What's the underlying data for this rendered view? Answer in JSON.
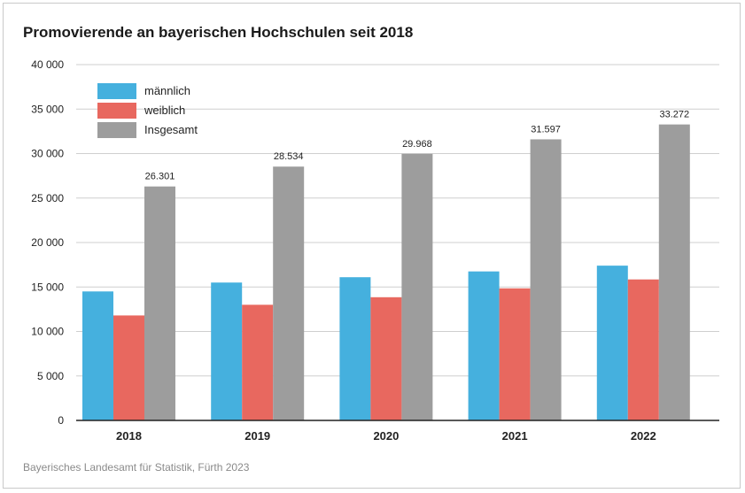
{
  "chart_data": {
    "type": "bar",
    "title": "Promovierende an bayerischen Hochschulen seit 2018",
    "source": "Bayerisches Landesamt für Statistik, Fürth 2023",
    "categories": [
      "2018",
      "2019",
      "2020",
      "2021",
      "2022"
    ],
    "series": [
      {
        "name": "männlich",
        "color": "#45b0de",
        "values": [
          14500,
          15500,
          16100,
          16750,
          17400
        ]
      },
      {
        "name": "weiblich",
        "color": "#e8685f",
        "values": [
          11800,
          13000,
          13850,
          14850,
          15850
        ]
      },
      {
        "name": "Insgesamt",
        "color": "#9d9d9d",
        "values": [
          26301,
          28534,
          29968,
          31597,
          33272
        ]
      }
    ],
    "data_labels": [
      "26.301",
      "28.534",
      "29.968",
      "31.597",
      "33.272"
    ],
    "yticks": [
      0,
      5000,
      10000,
      15000,
      20000,
      25000,
      30000,
      35000,
      40000
    ],
    "ytick_labels": [
      "0",
      "5 000",
      "10 000",
      "15 000",
      "20 000",
      "25 000",
      "30 000",
      "35 000",
      "40 000"
    ],
    "ylim": [
      0,
      40000
    ],
    "xlabel": "",
    "ylabel": "",
    "grid": true,
    "legend_position": "top-left"
  }
}
